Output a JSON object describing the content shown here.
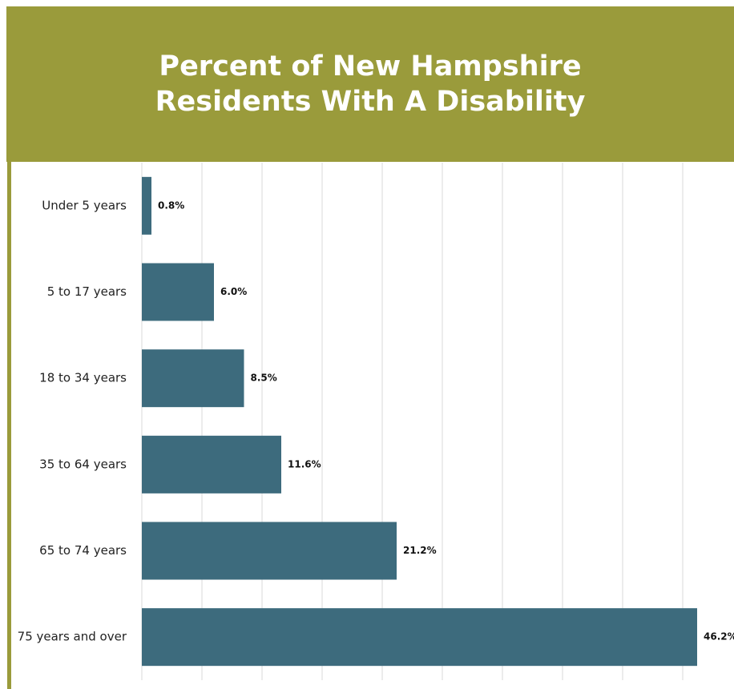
{
  "chart_data": {
    "type": "bar",
    "orientation": "horizontal",
    "title": "Percent of New Hampshire Residents With A Disability",
    "categories": [
      "Under 5 years",
      "5 to 17 years",
      "18 to 34 years",
      "35 to 64 years",
      "65 to 74 years",
      "75 years and over"
    ],
    "values": [
      0.8,
      6.0,
      8.5,
      11.6,
      21.2,
      46.2
    ],
    "value_labels": [
      "0.8%",
      "6.0%",
      "8.5%",
      "11.6%",
      "21.2%",
      "46.2%"
    ],
    "color": "#3d6b7d",
    "xlim": [
      0,
      50
    ],
    "xticks": [
      0,
      5,
      10,
      15,
      20,
      25,
      30,
      35,
      40,
      45
    ],
    "grid": true
  }
}
